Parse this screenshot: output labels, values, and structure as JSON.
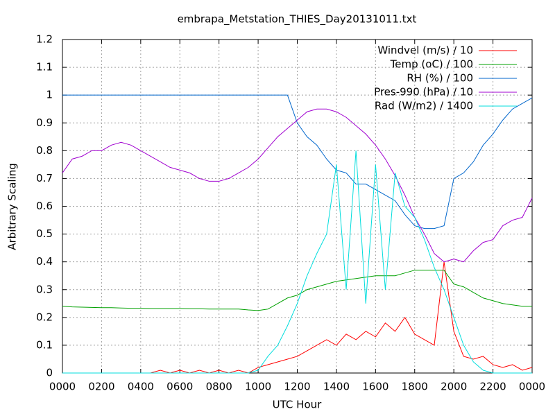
{
  "chart_data": {
    "type": "line",
    "title": "embrapa_Metstation_THIES_Day20131011.txt",
    "x_label": "UTC Hour",
    "y_label": "Arbitrary Scaling",
    "x": [
      0,
      0.5,
      1,
      1.5,
      2,
      2.5,
      3,
      3.5,
      4,
      4.5,
      5,
      5.5,
      6,
      6.5,
      7,
      7.5,
      8,
      8.5,
      9,
      9.5,
      10,
      10.5,
      11,
      11.5,
      12,
      12.5,
      13,
      13.5,
      14,
      14.5,
      15,
      15.5,
      16,
      16.5,
      17,
      17.5,
      18,
      18.5,
      19,
      19.5,
      20,
      20.5,
      21,
      21.5,
      22,
      22.5,
      23,
      23.5,
      24
    ],
    "series": [
      {
        "name": "Windvel (m/s) / 10",
        "color": "#ff0000",
        "values": [
          0,
          0,
          0,
          0,
          0,
          0,
          0,
          0,
          0,
          0,
          0.01,
          0,
          0.01,
          0,
          0.01,
          0,
          0.01,
          0,
          0.01,
          0,
          0.02,
          0.03,
          0.04,
          0.05,
          0.06,
          0.08,
          0.1,
          0.12,
          0.1,
          0.14,
          0.12,
          0.15,
          0.13,
          0.18,
          0.15,
          0.2,
          0.14,
          0.12,
          0.1,
          0.4,
          0.15,
          0.06,
          0.05,
          0.06,
          0.03,
          0.02,
          0.03,
          0.01,
          0.02
        ]
      },
      {
        "name": "Temp (oC) / 100",
        "color": "#00a000",
        "values": [
          0.24,
          0.238,
          0.237,
          0.236,
          0.235,
          0.235,
          0.234,
          0.233,
          0.233,
          0.232,
          0.232,
          0.232,
          0.232,
          0.231,
          0.231,
          0.23,
          0.23,
          0.23,
          0.23,
          0.227,
          0.225,
          0.23,
          0.25,
          0.27,
          0.28,
          0.3,
          0.31,
          0.32,
          0.33,
          0.335,
          0.34,
          0.345,
          0.35,
          0.35,
          0.35,
          0.36,
          0.37,
          0.37,
          0.37,
          0.37,
          0.32,
          0.31,
          0.29,
          0.27,
          0.26,
          0.25,
          0.245,
          0.24,
          0.24
        ]
      },
      {
        "name": "RH (%) / 100",
        "color": "#0066cc",
        "values": [
          1,
          1,
          1,
          1,
          1,
          1,
          1,
          1,
          1,
          1,
          1,
          1,
          1,
          1,
          1,
          1,
          1,
          1,
          1,
          1,
          1,
          1,
          1,
          1,
          0.9,
          0.85,
          0.82,
          0.77,
          0.73,
          0.72,
          0.68,
          0.68,
          0.66,
          0.64,
          0.62,
          0.57,
          0.53,
          0.52,
          0.52,
          0.53,
          0.7,
          0.72,
          0.76,
          0.82,
          0.86,
          0.91,
          0.95,
          0.97,
          0.99
        ]
      },
      {
        "name": "Pres-990 (hPa) / 10",
        "color": "#a000d0",
        "values": [
          0.72,
          0.77,
          0.78,
          0.8,
          0.8,
          0.82,
          0.83,
          0.82,
          0.8,
          0.78,
          0.76,
          0.74,
          0.73,
          0.72,
          0.7,
          0.69,
          0.69,
          0.7,
          0.72,
          0.74,
          0.77,
          0.81,
          0.85,
          0.88,
          0.91,
          0.94,
          0.95,
          0.95,
          0.94,
          0.92,
          0.89,
          0.86,
          0.82,
          0.77,
          0.71,
          0.64,
          0.56,
          0.5,
          0.43,
          0.4,
          0.41,
          0.4,
          0.44,
          0.47,
          0.48,
          0.53,
          0.55,
          0.56,
          0.63
        ]
      },
      {
        "name": "Rad (W/m2) / 1400",
        "color": "#00dddd",
        "values": [
          0,
          0,
          0,
          0,
          0,
          0,
          0,
          0,
          0,
          0,
          0,
          0,
          0,
          0,
          0,
          0,
          0,
          0,
          0,
          0,
          0.01,
          0.06,
          0.1,
          0.17,
          0.25,
          0.35,
          0.43,
          0.5,
          0.75,
          0.3,
          0.8,
          0.25,
          0.75,
          0.3,
          0.72,
          0.6,
          0.56,
          0.48,
          0.38,
          0.3,
          0.2,
          0.1,
          0.04,
          0.01,
          0,
          0,
          0,
          0,
          0
        ]
      }
    ],
    "xlim": [
      0,
      24
    ],
    "xticks": [
      {
        "value": 0,
        "label": "0000"
      },
      {
        "value": 2,
        "label": "0200"
      },
      {
        "value": 4,
        "label": "0400"
      },
      {
        "value": 6,
        "label": "0600"
      },
      {
        "value": 8,
        "label": "0800"
      },
      {
        "value": 10,
        "label": "1000"
      },
      {
        "value": 12,
        "label": "1200"
      },
      {
        "value": 14,
        "label": "1400"
      },
      {
        "value": 16,
        "label": "1600"
      },
      {
        "value": 18,
        "label": "1800"
      },
      {
        "value": 20,
        "label": "2000"
      },
      {
        "value": 22,
        "label": "2200"
      },
      {
        "value": 24,
        "label": "0000"
      }
    ],
    "ylim": [
      0,
      1.2
    ],
    "yticks": [
      0,
      0.1,
      0.2,
      0.3,
      0.4,
      0.5,
      0.6,
      0.7,
      0.8,
      0.9,
      1,
      1.1,
      1.2
    ],
    "grid": true,
    "legend": "top-right"
  }
}
